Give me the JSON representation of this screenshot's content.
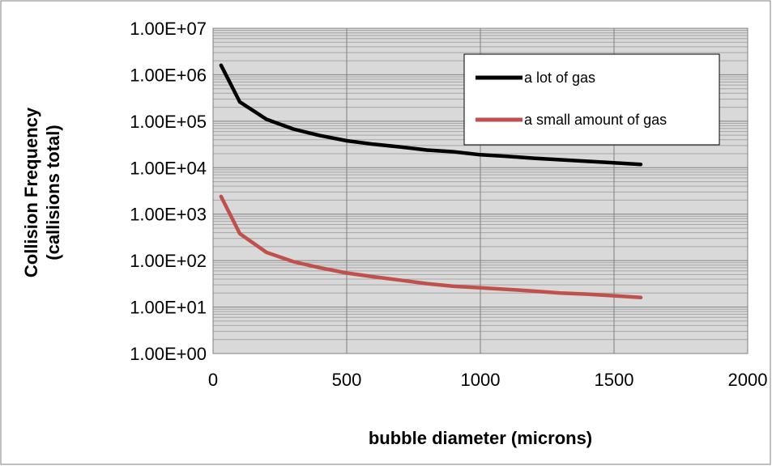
{
  "chart_data": {
    "type": "line",
    "title": "",
    "xlabel": "bubble diameter (microns)",
    "ylabel_lines": [
      "Collision Frequency",
      "(callisions total)"
    ],
    "x_scale": "linear",
    "y_scale": "log",
    "xlim": [
      0,
      2000
    ],
    "ylim": [
      1,
      10000000
    ],
    "x_ticks": [
      0,
      500,
      1000,
      1500,
      2000
    ],
    "x_tick_labels": [
      "0",
      "500",
      "1000",
      "1500",
      "2000"
    ],
    "y_ticks": [
      1,
      10,
      100,
      1000,
      10000,
      100000,
      1000000,
      10000000
    ],
    "y_tick_labels": [
      "1.00E+00",
      "1.00E+01",
      "1.00E+02",
      "1.00E+03",
      "1.00E+04",
      "1.00E+05",
      "1.00E+06",
      "1.00E+07"
    ],
    "grid": {
      "major": true,
      "minor_y": true
    },
    "plot_background": "#d9d9d9",
    "legend_position": "top-right",
    "series": [
      {
        "name": "a lot of gas",
        "color": "#000000",
        "x": [
          30,
          100,
          200,
          300,
          400,
          500,
          600,
          700,
          800,
          900,
          1000,
          1100,
          1200,
          1300,
          1400,
          1500,
          1600
        ],
        "y": [
          1600000,
          260000,
          110000,
          68000,
          49000,
          38000,
          32000,
          28000,
          24000,
          22000,
          19000,
          17500,
          16000,
          14800,
          13700,
          12700,
          11800
        ]
      },
      {
        "name": "a small amount of gas",
        "color": "#c0504d",
        "x": [
          30,
          100,
          200,
          300,
          400,
          500,
          600,
          700,
          800,
          900,
          1000,
          1100,
          1200,
          1300,
          1400,
          1500,
          1600
        ],
        "y": [
          2400,
          380,
          150,
          95,
          70,
          54,
          45,
          38,
          32,
          28,
          26,
          24,
          22,
          20,
          19,
          17.5,
          16
        ]
      }
    ]
  }
}
